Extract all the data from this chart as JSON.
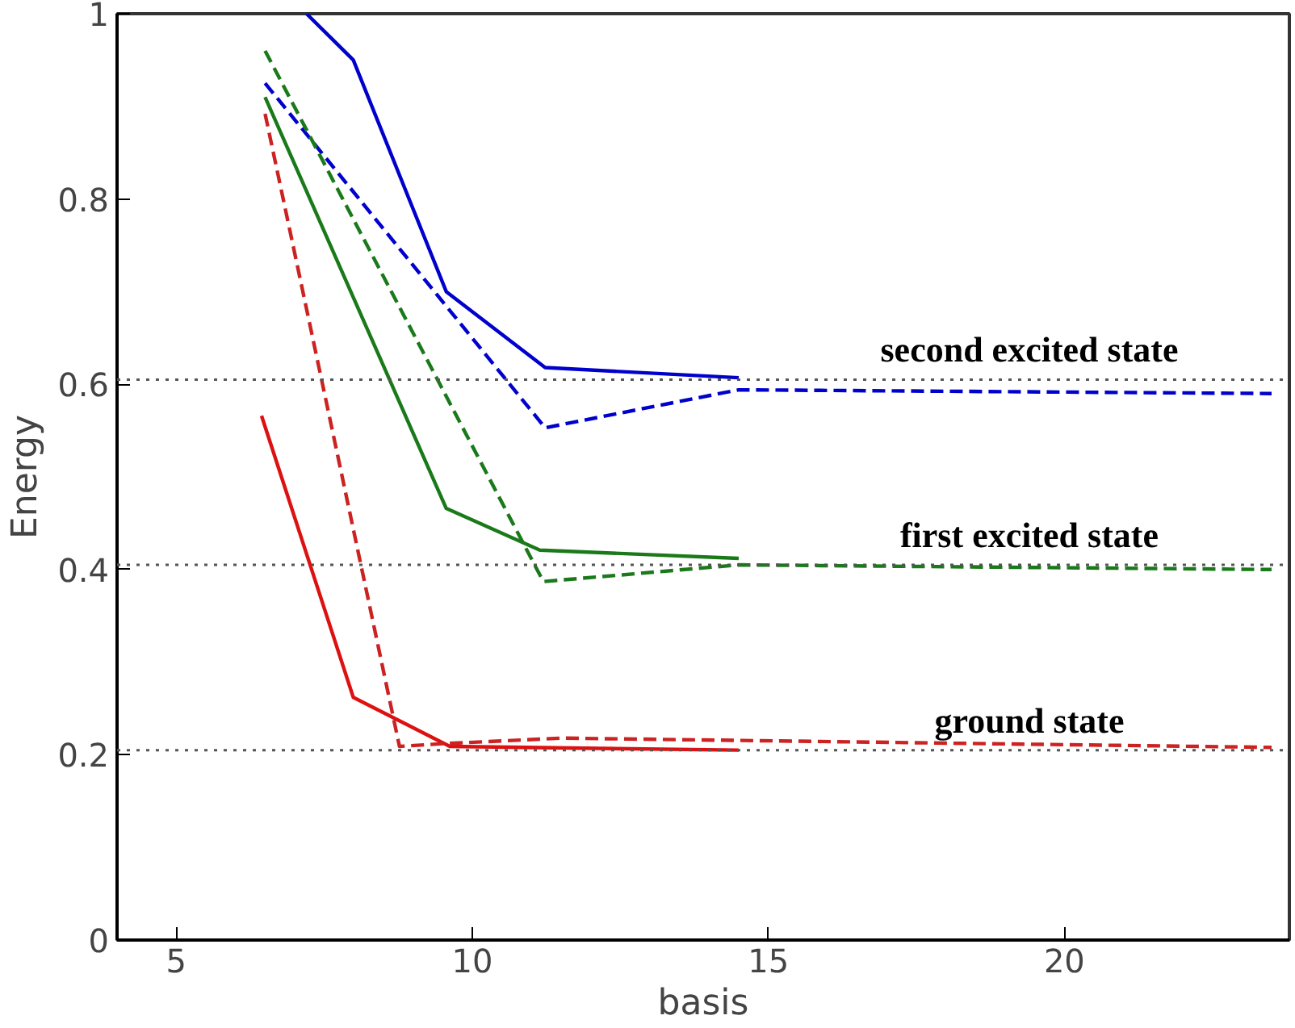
{
  "chart_data": {
    "type": "line",
    "xlabel": "basis",
    "ylabel": "Energy",
    "xlim": [
      4,
      23.8
    ],
    "ylim": [
      0,
      1
    ],
    "xticks": [
      5,
      10,
      15,
      20
    ],
    "yticks": [
      0,
      {
        "value": 0.2,
        "label": "0.2"
      },
      {
        "value": 0.4,
        "label": "0.4"
      },
      {
        "value": 0.6,
        "label": "0.6"
      },
      {
        "value": 0.8,
        "label": "0.8"
      },
      1
    ],
    "grid": false,
    "series": [
      {
        "color": "#0000cc",
        "line_style": "solid",
        "x": [
          7.2,
          7.99,
          9.56,
          11.23,
          14.5
        ],
        "values": [
          1.0,
          0.95,
          0.7,
          0.618,
          0.607
        ]
      },
      {
        "color": "#0000cc",
        "line_style": "dashed",
        "x": [
          6.5,
          11.23,
          14.5,
          23.5
        ],
        "values": [
          0.925,
          0.553,
          0.594,
          0.59
        ]
      },
      {
        "color": "#1a7a1a",
        "line_style": "solid",
        "x": [
          6.5,
          9.56,
          11.14,
          14.5
        ],
        "values": [
          0.91,
          0.466,
          0.421,
          0.412
        ]
      },
      {
        "color": "#1a7a1a",
        "line_style": "dashed",
        "x": [
          6.5,
          11.2,
          14.5,
          23.5
        ],
        "values": [
          0.96,
          0.387,
          0.405,
          0.4
        ]
      },
      {
        "color": "#dd1111",
        "line_style": "solid",
        "x": [
          6.44,
          7.99,
          9.62,
          14.5
        ],
        "values": [
          0.566,
          0.262,
          0.209,
          0.205
        ]
      },
      {
        "color": "#cc2222",
        "line_style": "dashed",
        "x": [
          6.5,
          8.77,
          9.5,
          11.5,
          23.5
        ],
        "values": [
          0.892,
          0.209,
          0.212,
          0.218,
          0.208
        ]
      }
    ],
    "ref_lines": [
      {
        "axis": "y",
        "value": 0.605,
        "color": "#555555",
        "line_style": "dotted"
      },
      {
        "axis": "y",
        "value": 0.405,
        "color": "#555555",
        "line_style": "dotted"
      },
      {
        "axis": "y",
        "value": 0.205,
        "color": "#555555",
        "line_style": "dotted"
      }
    ],
    "annotations": [
      "second excited state",
      "first excited state",
      "ground state"
    ]
  }
}
